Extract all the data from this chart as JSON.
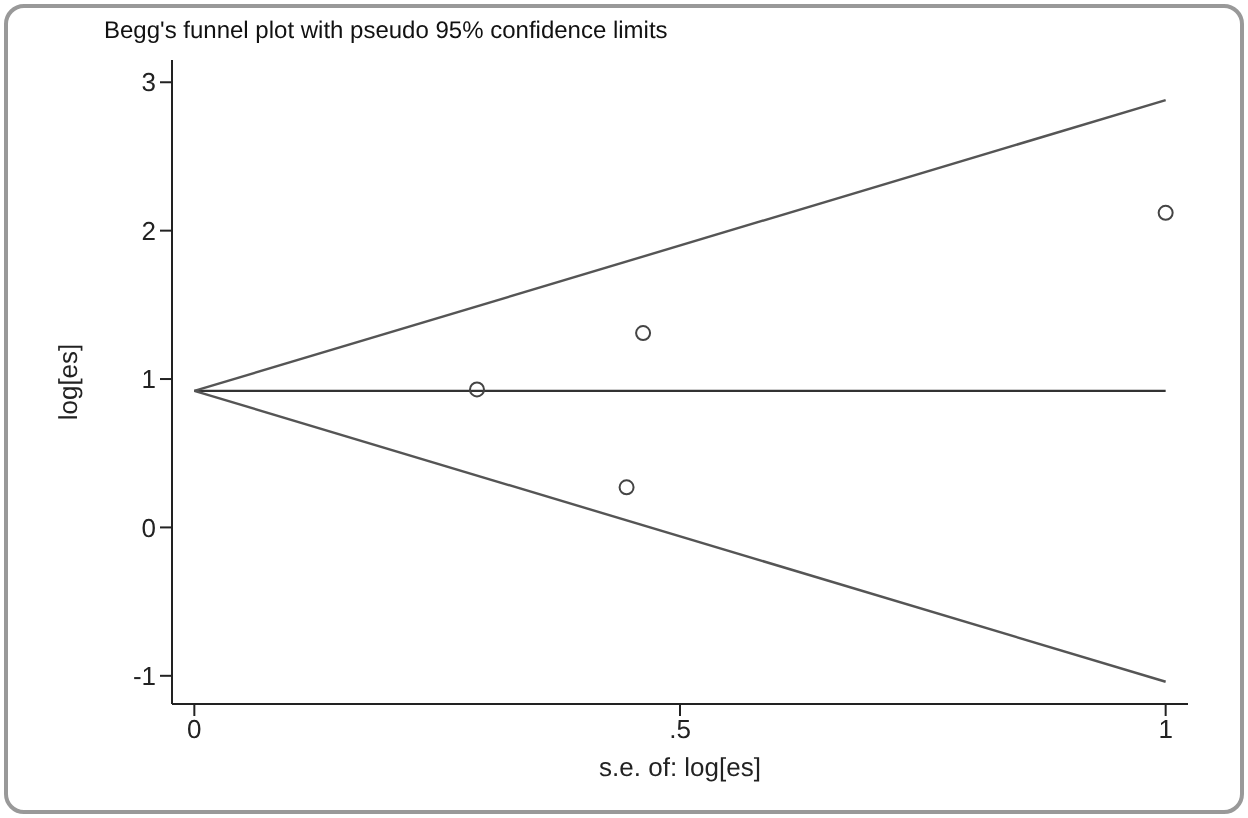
{
  "chart_data": {
    "type": "scatter",
    "title": "Begg's funnel plot with pseudo 95% confidence limits",
    "xlabel": "s.e. of: log[es]",
    "ylabel": "log[es]",
    "xlim": [
      -0.023,
      1.023
    ],
    "ylim": [
      -1.19,
      3.15
    ],
    "xticks": [
      0,
      {
        "value": 0.5,
        "label": ".5"
      },
      1
    ],
    "yticks": [
      -1,
      0,
      1,
      2,
      3
    ],
    "series": [
      {
        "marker": "circle",
        "color": "#444444",
        "x": [
          0.291,
          0.445,
          0.462,
          1.0
        ],
        "values": [
          0.93,
          0.27,
          1.31,
          2.12
        ]
      },
      {
        "type": "line",
        "color": "#333333",
        "x": [
          0,
          1
        ],
        "values": [
          0.92,
          0.92
        ]
      },
      {
        "type": "line",
        "color": "#555555",
        "x": [
          0,
          1
        ],
        "values": [
          0.92,
          2.88
        ]
      },
      {
        "type": "line",
        "color": "#555555",
        "x": [
          0,
          1
        ],
        "values": [
          0.92,
          -1.04
        ]
      }
    ]
  }
}
